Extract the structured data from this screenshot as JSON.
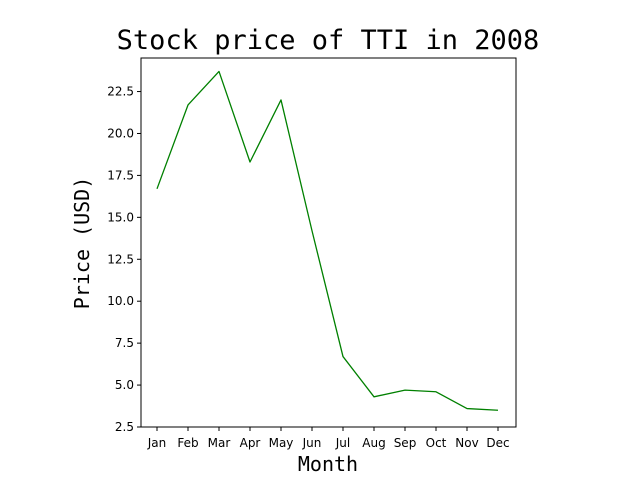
{
  "chart_data": {
    "type": "line",
    "title": "Stock price of TTI in 2008",
    "xlabel": "Month",
    "ylabel": "Price (USD)",
    "categories": [
      "Jan",
      "Feb",
      "Mar",
      "Apr",
      "May",
      "Jun",
      "Jul",
      "Aug",
      "Sep",
      "Oct",
      "Nov",
      "Dec"
    ],
    "series": [
      {
        "values": [
          16.7,
          21.7,
          23.7,
          18.3,
          22.0,
          14.2,
          6.7,
          4.3,
          4.7,
          4.6,
          3.6,
          3.5
        ],
        "color": "#008000"
      }
    ],
    "ylim": [
      2.5,
      24.5
    ],
    "yticks": [
      2.5,
      5.0,
      7.5,
      10.0,
      12.5,
      15.0,
      17.5,
      20.0,
      22.5
    ],
    "ytick_labels": [
      "2.5",
      "5.0",
      "7.5",
      "10.0",
      "12.5",
      "15.0",
      "17.5",
      "20.0",
      "22.5"
    ],
    "grid": false,
    "legend": "none"
  }
}
